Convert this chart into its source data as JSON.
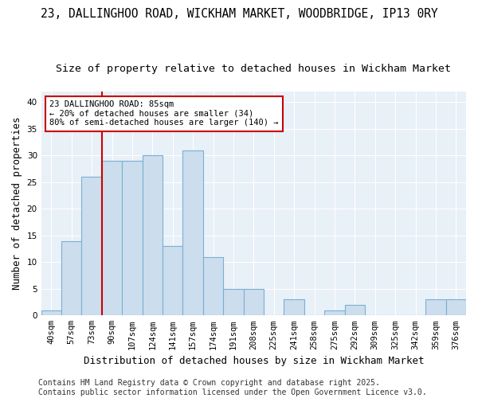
{
  "title1": "23, DALLINGHOO ROAD, WICKHAM MARKET, WOODBRIDGE, IP13 0RY",
  "title2": "Size of property relative to detached houses in Wickham Market",
  "xlabel": "Distribution of detached houses by size in Wickham Market",
  "ylabel": "Number of detached properties",
  "categories": [
    "40sqm",
    "57sqm",
    "73sqm",
    "90sqm",
    "107sqm",
    "124sqm",
    "141sqm",
    "157sqm",
    "174sqm",
    "191sqm",
    "208sqm",
    "225sqm",
    "241sqm",
    "258sqm",
    "275sqm",
    "292sqm",
    "309sqm",
    "325sqm",
    "342sqm",
    "359sqm",
    "376sqm"
  ],
  "values": [
    1,
    14,
    26,
    29,
    29,
    30,
    13,
    31,
    11,
    5,
    5,
    0,
    3,
    0,
    1,
    2,
    0,
    0,
    0,
    3,
    3
  ],
  "bar_color": "#ccdded",
  "bar_edge_color": "#7ab0d4",
  "vline_index": 2.5,
  "vline_color": "#cc0000",
  "annotation_text": "23 DALLINGHOO ROAD: 85sqm\n← 20% of detached houses are smaller (34)\n80% of semi-detached houses are larger (140) →",
  "annotation_box_color": "white",
  "annotation_box_edge": "#cc0000",
  "ylim": [
    0,
    42
  ],
  "yticks": [
    0,
    5,
    10,
    15,
    20,
    25,
    30,
    35,
    40
  ],
  "footer": "Contains HM Land Registry data © Crown copyright and database right 2025.\nContains public sector information licensed under the Open Government Licence v3.0.",
  "background_color": "#ffffff",
  "plot_bg_color": "#e8f0f8",
  "grid_color": "#ffffff",
  "title_fontsize": 10.5,
  "subtitle_fontsize": 9.5,
  "axis_label_fontsize": 9,
  "tick_fontsize": 7.5,
  "annot_fontsize": 7.5,
  "footer_fontsize": 7
}
